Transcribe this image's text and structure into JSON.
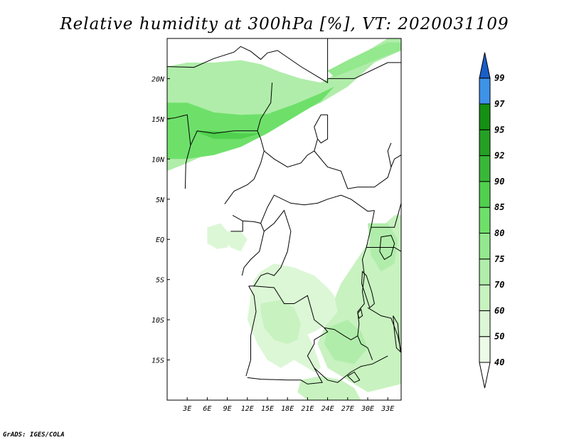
{
  "title": "Relative humidity at 300hPa [%], VT: 2020031109",
  "credit": "GrADS: IGES/COLA",
  "map": {
    "lon_range": [
      0,
      35
    ],
    "lat_range": [
      -20,
      25
    ],
    "x_ticks": [
      {
        "lon": 3,
        "label": "3E"
      },
      {
        "lon": 6,
        "label": "6E"
      },
      {
        "lon": 9,
        "label": "9E"
      },
      {
        "lon": 12,
        "label": "12E"
      },
      {
        "lon": 15,
        "label": "15E"
      },
      {
        "lon": 18,
        "label": "18E"
      },
      {
        "lon": 21,
        "label": "21E"
      },
      {
        "lon": 24,
        "label": "24E"
      },
      {
        "lon": 27,
        "label": "27E"
      },
      {
        "lon": 30,
        "label": "30E"
      },
      {
        "lon": 33,
        "label": "33E"
      }
    ],
    "y_ticks": [
      {
        "lat": 20,
        "label": "20N"
      },
      {
        "lat": 15,
        "label": "15N"
      },
      {
        "lat": 10,
        "label": "10N"
      },
      {
        "lat": 5,
        "label": "5N"
      },
      {
        "lat": 0,
        "label": "EQ"
      },
      {
        "lat": -5,
        "label": "5S"
      },
      {
        "lat": -10,
        "label": "10S"
      },
      {
        "lat": -15,
        "label": "15S"
      }
    ]
  },
  "colorbar": {
    "levels": [
      {
        "label": "40",
        "color": "#ecfbe8"
      },
      {
        "label": "50",
        "color": "#dcf7d6"
      },
      {
        "label": "60",
        "color": "#c8f2c0"
      },
      {
        "label": "70",
        "color": "#b0edaa"
      },
      {
        "label": "75",
        "color": "#94e88e"
      },
      {
        "label": "80",
        "color": "#6ee06a"
      },
      {
        "label": "85",
        "color": "#50d04e"
      },
      {
        "label": "90",
        "color": "#38b838"
      },
      {
        "label": "92",
        "color": "#24a024"
      },
      {
        "label": "95",
        "color": "#149014"
      },
      {
        "label": "97",
        "color": "#3e92e8"
      },
      {
        "label": "99",
        "color": "#2b72d8"
      }
    ],
    "over_color": "#1a5ec8",
    "under_color": "#ffffff"
  },
  "humidity_regions": [
    {
      "name": "sahel-band",
      "level": 70,
      "points": [
        [
          0,
          21.5
        ],
        [
          3,
          22
        ],
        [
          7,
          22
        ],
        [
          11,
          22.3
        ],
        [
          14,
          21.8
        ],
        [
          17,
          20.8
        ],
        [
          20,
          20
        ],
        [
          23,
          19.5
        ],
        [
          26,
          21
        ],
        [
          29,
          23
        ],
        [
          33,
          25
        ],
        [
          35,
          25
        ],
        [
          35,
          23.5
        ],
        [
          31,
          22
        ],
        [
          27,
          19
        ],
        [
          23,
          17
        ],
        [
          19,
          15.5
        ],
        [
          15,
          14
        ],
        [
          11,
          12
        ],
        [
          7,
          11
        ],
        [
          3,
          9.5
        ],
        [
          0,
          8.5
        ]
      ]
    },
    {
      "name": "sahel-core",
      "level": 80,
      "points": [
        [
          0,
          17
        ],
        [
          3,
          17
        ],
        [
          7,
          15.8
        ],
        [
          11,
          15.5
        ],
        [
          15,
          15.6
        ],
        [
          19,
          16.8
        ],
        [
          23,
          18.2
        ],
        [
          25,
          19
        ],
        [
          23,
          17.2
        ],
        [
          19,
          15.2
        ],
        [
          15,
          13.2
        ],
        [
          11,
          11.5
        ],
        [
          7,
          10.5
        ],
        [
          3,
          10
        ],
        [
          0,
          10
        ]
      ]
    },
    {
      "name": "sahel-streak",
      "level": 85,
      "points": [
        [
          4,
          13.5
        ],
        [
          7,
          12.5
        ],
        [
          11,
          12.5
        ],
        [
          14,
          13.2
        ],
        [
          11,
          13.2
        ],
        [
          7,
          13.5
        ]
      ]
    },
    {
      "name": "ne-plume",
      "level": 75,
      "points": [
        [
          24,
          21
        ],
        [
          27,
          22.3
        ],
        [
          30,
          23.5
        ],
        [
          33,
          24.5
        ],
        [
          35,
          24.5
        ],
        [
          35,
          23.5
        ],
        [
          32,
          22.6
        ],
        [
          28,
          21.2
        ],
        [
          25,
          20.2
        ]
      ]
    },
    {
      "name": "gulf-guinea-spot",
      "level": 50,
      "points": [
        [
          6,
          1.5
        ],
        [
          8,
          2
        ],
        [
          9.5,
          0.5
        ],
        [
          9,
          -1
        ],
        [
          7.5,
          -1.2
        ],
        [
          6,
          -0.5
        ]
      ]
    },
    {
      "name": "gabon-spot",
      "level": 50,
      "points": [
        [
          9,
          1
        ],
        [
          11,
          1
        ],
        [
          12,
          0
        ],
        [
          11,
          -1.5
        ],
        [
          9.5,
          -1
        ],
        [
          8.5,
          0
        ]
      ]
    },
    {
      "name": "east-central",
      "level": 60,
      "points": [
        [
          35,
          3
        ],
        [
          35,
          -18
        ],
        [
          30,
          -19
        ],
        [
          27,
          -17.5
        ],
        [
          24,
          -16
        ],
        [
          22.5,
          -13
        ],
        [
          24,
          -10
        ],
        [
          25,
          -7.5
        ],
        [
          26,
          -5.5
        ],
        [
          28,
          -3
        ],
        [
          30,
          -0.5
        ],
        [
          32,
          1.5
        ],
        [
          34,
          3
        ]
      ]
    },
    {
      "name": "congo-west-area",
      "level": 50,
      "points": [
        [
          14,
          -4
        ],
        [
          16,
          -3
        ],
        [
          19,
          -3.5
        ],
        [
          22,
          -4.5
        ],
        [
          24,
          -6
        ],
        [
          25,
          -7
        ],
        [
          25.5,
          -9
        ],
        [
          24,
          -10.5
        ],
        [
          22,
          -11.5
        ],
        [
          21,
          -11.8
        ],
        [
          22,
          -13.5
        ],
        [
          23,
          -16
        ],
        [
          22,
          -16.5
        ],
        [
          19,
          -15
        ],
        [
          17,
          -16
        ],
        [
          15,
          -15
        ],
        [
          13.5,
          -13
        ],
        [
          12,
          -10
        ],
        [
          12.5,
          -7
        ],
        [
          13,
          -5
        ]
      ]
    },
    {
      "name": "angola-core",
      "level": 60,
      "points": [
        [
          14,
          -8
        ],
        [
          17,
          -7.5
        ],
        [
          19,
          -8.5
        ],
        [
          20,
          -10.5
        ],
        [
          19.5,
          -12.5
        ],
        [
          18,
          -13
        ],
        [
          16,
          -12.5
        ],
        [
          14.5,
          -11
        ],
        [
          14,
          -9
        ]
      ]
    },
    {
      "name": "zambia-core",
      "level": 70,
      "points": [
        [
          24,
          -11
        ],
        [
          27,
          -10
        ],
        [
          29,
          -11.5
        ],
        [
          30,
          -13.5
        ],
        [
          28,
          -15.5
        ],
        [
          25,
          -15
        ],
        [
          23.5,
          -13
        ]
      ]
    },
    {
      "name": "uganda-core",
      "level": 70,
      "points": [
        [
          30,
          2
        ],
        [
          33,
          2
        ],
        [
          34.5,
          0
        ],
        [
          34,
          -3
        ],
        [
          32,
          -4
        ],
        [
          30.5,
          -2
        ]
      ]
    },
    {
      "name": "south-patch",
      "level": 60,
      "points": [
        [
          20,
          -17.5
        ],
        [
          23,
          -17
        ],
        [
          26,
          -17.5
        ],
        [
          28,
          -18.5
        ],
        [
          29,
          -20
        ],
        [
          21,
          -20
        ],
        [
          19.5,
          -19
        ]
      ]
    }
  ],
  "borders": [
    [
      [
        0,
        21.5
      ],
      [
        4,
        21.4
      ],
      [
        7,
        22.5
      ],
      [
        10,
        23.3
      ],
      [
        11,
        24
      ],
      [
        12.5,
        23.4
      ],
      [
        14,
        22.4
      ],
      [
        15,
        23.2
      ],
      [
        16.5,
        23.5
      ],
      [
        20,
        21.5
      ],
      [
        24,
        19.5
      ],
      [
        24,
        25
      ]
    ],
    [
      [
        24,
        20
      ],
      [
        28,
        20
      ],
      [
        33,
        22
      ],
      [
        35,
        22
      ]
    ],
    [
      [
        0,
        15
      ],
      [
        1,
        15.1
      ],
      [
        3,
        15.5
      ],
      [
        3.5,
        11.7
      ],
      [
        2.8,
        9.5
      ],
      [
        2.7,
        6.3
      ]
    ],
    [
      [
        3.5,
        11.7
      ],
      [
        4.5,
        13.5
      ],
      [
        7,
        13.2
      ],
      [
        10,
        13.5
      ],
      [
        13.5,
        13.5
      ],
      [
        14,
        12.5
      ],
      [
        14.5,
        11
      ],
      [
        14,
        9.5
      ],
      [
        13,
        7.5
      ],
      [
        12,
        6.8
      ],
      [
        10,
        6
      ],
      [
        8.6,
        4.4
      ]
    ],
    [
      [
        14.5,
        11
      ],
      [
        16,
        10
      ],
      [
        18,
        9
      ],
      [
        20,
        9.5
      ],
      [
        21,
        10.5
      ],
      [
        22,
        11
      ],
      [
        22.5,
        12.5
      ],
      [
        22,
        14
      ],
      [
        23,
        15.5
      ],
      [
        24,
        15.5
      ]
    ],
    [
      [
        13.5,
        13.5
      ],
      [
        14,
        15
      ],
      [
        15.5,
        17
      ],
      [
        15.7,
        19.5
      ]
    ],
    [
      [
        14,
        2
      ],
      [
        15,
        4
      ],
      [
        16,
        5.5
      ],
      [
        18.5,
        4.5
      ],
      [
        20.5,
        4.3
      ],
      [
        22.5,
        4.5
      ],
      [
        24,
        5
      ],
      [
        26,
        5.5
      ],
      [
        27.5,
        5
      ],
      [
        30,
        3.5
      ],
      [
        31,
        3.6
      ]
    ],
    [
      [
        22,
        11
      ],
      [
        24,
        9
      ],
      [
        26,
        8.5
      ],
      [
        27,
        6.3
      ],
      [
        28.5,
        6.5
      ],
      [
        31,
        6.5
      ],
      [
        33,
        7.7
      ],
      [
        33.5,
        9
      ],
      [
        34,
        10
      ],
      [
        35,
        10.5
      ]
    ],
    [
      [
        24,
        15.5
      ],
      [
        24,
        12.5
      ],
      [
        23,
        12
      ],
      [
        22.5,
        12.5
      ]
    ],
    [
      [
        33.5,
        9
      ],
      [
        33,
        11
      ],
      [
        33.5,
        12
      ]
    ],
    [
      [
        9.8,
        3
      ],
      [
        11.3,
        2.3
      ],
      [
        13,
        2.2
      ],
      [
        14,
        2
      ],
      [
        14.5,
        1
      ],
      [
        13.8,
        -1.5
      ],
      [
        12.5,
        -2.5
      ],
      [
        11.5,
        -3.5
      ],
      [
        11.2,
        -4.5
      ]
    ],
    [
      [
        11.3,
        2.3
      ],
      [
        11.3,
        1
      ],
      [
        9.5,
        1
      ]
    ],
    [
      [
        14.5,
        1
      ],
      [
        16,
        2
      ],
      [
        17.5,
        3.6
      ],
      [
        18.5,
        1
      ],
      [
        18,
        -1.5
      ],
      [
        17,
        -3.5
      ],
      [
        16,
        -4.5
      ],
      [
        15,
        -4.2
      ],
      [
        14,
        -4.5
      ],
      [
        13,
        -5.8
      ],
      [
        12.2,
        -5.8
      ]
    ],
    [
      [
        12.2,
        -5.8
      ],
      [
        13,
        -7
      ],
      [
        13.3,
        -9
      ],
      [
        12.5,
        -12
      ],
      [
        12.5,
        -15
      ],
      [
        11.8,
        -17
      ]
    ],
    [
      [
        13,
        -5.8
      ],
      [
        16,
        -6
      ],
      [
        17.5,
        -8
      ],
      [
        19,
        -8
      ],
      [
        21,
        -7
      ],
      [
        22,
        -10
      ],
      [
        23.5,
        -11
      ],
      [
        24,
        -11.5
      ],
      [
        22,
        -12.5
      ],
      [
        22,
        -13
      ],
      [
        21,
        -14.5
      ],
      [
        22,
        -16
      ],
      [
        23.2,
        -17.8
      ],
      [
        21,
        -18
      ],
      [
        20,
        -17.5
      ],
      [
        18,
        -17.5
      ],
      [
        14,
        -17.4
      ],
      [
        12,
        -17.2
      ]
    ],
    [
      [
        31,
        3.6
      ],
      [
        30.5,
        1.5
      ],
      [
        29.8,
        -1
      ],
      [
        29.2,
        -2.5
      ],
      [
        29.5,
        -4.5
      ],
      [
        29.2,
        -6.5
      ],
      [
        29.5,
        -8
      ],
      [
        28.5,
        -9
      ],
      [
        28.7,
        -10.5
      ],
      [
        28.5,
        -12
      ],
      [
        29,
        -13
      ],
      [
        30,
        -13.5
      ],
      [
        30.7,
        -15
      ]
    ],
    [
      [
        23.5,
        -11
      ],
      [
        25,
        -11.2
      ],
      [
        26.5,
        -12
      ],
      [
        27.5,
        -12.5
      ],
      [
        28.5,
        -12
      ]
    ],
    [
      [
        22,
        -16
      ],
      [
        24,
        -17.5
      ],
      [
        25.5,
        -17.8
      ],
      [
        27.5,
        -16.5
      ],
      [
        29,
        -15.8
      ],
      [
        30.7,
        -15.5
      ],
      [
        33,
        -14.5
      ]
    ],
    [
      [
        30.5,
        1.5
      ],
      [
        34,
        1.5
      ],
      [
        34.5,
        3
      ],
      [
        35,
        4.5
      ]
    ],
    [
      [
        29.8,
        -1
      ],
      [
        31.5,
        -1
      ],
      [
        34,
        -1
      ],
      [
        35,
        -1.5
      ]
    ],
    [
      [
        30,
        -8.5
      ],
      [
        32,
        -9.5
      ],
      [
        33.5,
        -9.8
      ],
      [
        34.5,
        -12
      ],
      [
        35,
        -14
      ]
    ],
    [
      [
        0,
        -20
      ],
      [
        0,
        25
      ]
    ]
  ],
  "lakes": [
    [
      [
        32,
        0.3
      ],
      [
        33.5,
        0.5
      ],
      [
        34,
        -0.5
      ],
      [
        33.5,
        -2
      ],
      [
        32.5,
        -2.5
      ],
      [
        31.8,
        -1.5
      ]
    ],
    [
      [
        29.2,
        -4
      ],
      [
        29.8,
        -4.5
      ],
      [
        30.6,
        -6.5
      ],
      [
        31,
        -8
      ],
      [
        30.3,
        -8.5
      ],
      [
        29.7,
        -7
      ],
      [
        29.1,
        -5.5
      ]
    ],
    [
      [
        33.8,
        -9.5
      ],
      [
        34.5,
        -10.5
      ],
      [
        34.7,
        -12.5
      ],
      [
        34.9,
        -14
      ],
      [
        34.3,
        -13.5
      ],
      [
        34,
        -11.5
      ]
    ],
    [
      [
        28.5,
        -9.2
      ],
      [
        29,
        -8.7
      ],
      [
        29.2,
        -9.5
      ],
      [
        28.7,
        -9.8
      ]
    ],
    [
      [
        27,
        -17
      ],
      [
        28,
        -16.5
      ],
      [
        28.8,
        -17.5
      ],
      [
        28,
        -17.8
      ]
    ]
  ]
}
